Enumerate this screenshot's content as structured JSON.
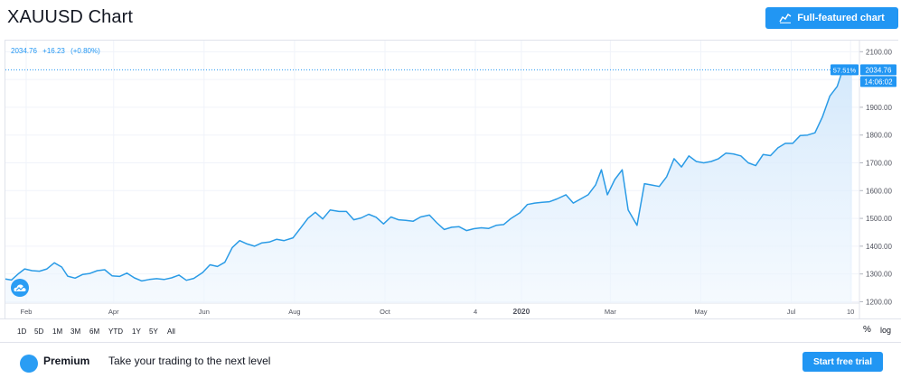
{
  "header": {
    "title": "XAUUSD Chart",
    "full_chart_label": "Full-featured chart"
  },
  "legend": {
    "last": "2034.76",
    "change": "+16.23",
    "change_pct": "(+0.80%)"
  },
  "price_badges": {
    "pct": "57.51%",
    "price": "2034.76",
    "time": "14:06:02"
  },
  "range_buttons": [
    "1D",
    "5D",
    "1M",
    "3M",
    "6M",
    "YTD",
    "1Y",
    "5Y",
    "All"
  ],
  "range_right": {
    "percent": "%",
    "log": "log"
  },
  "footer": {
    "premium_label": "Premium",
    "promo_text": "Take your trading to the next level",
    "trial_label": "Start free trial"
  },
  "colors": {
    "accent": "#2196f3",
    "line": "#2a9be6",
    "area": "#e3f1fc",
    "grid": "#f0f3fa",
    "last_price_line": "#2196f3"
  },
  "icons": {
    "full_chart": "chart-icon",
    "logo": "tradingview-cloud-icon",
    "premium": "premium-icon"
  },
  "chart_data": {
    "type": "area",
    "title": "XAUUSD",
    "xlabel": "",
    "ylabel": "",
    "ylim": [
      1195,
      2140
    ],
    "yticks": [
      1200,
      1300,
      1400,
      1500,
      1600,
      1700,
      1800,
      1900,
      2000,
      2100
    ],
    "ytick_labels": [
      "1200.00",
      "1300.00",
      "1400.00",
      "1500.00",
      "1600.00",
      "1700.00",
      "1800.00",
      "1900.00",
      "2000.00",
      "2100.00"
    ],
    "xrange": [
      "2019-01-18",
      "2020-08-16"
    ],
    "xticks": [
      {
        "date": "2019-02-01",
        "label": "Feb"
      },
      {
        "date": "2019-04-01",
        "label": "Apr"
      },
      {
        "date": "2019-06-01",
        "label": "Jun"
      },
      {
        "date": "2019-08-01",
        "label": "Aug"
      },
      {
        "date": "2019-10-01",
        "label": "Oct"
      },
      {
        "date": "2019-12-01",
        "label": "4"
      },
      {
        "date": "2020-01-01",
        "label": "2020"
      },
      {
        "date": "2020-03-01",
        "label": "Mar"
      },
      {
        "date": "2020-05-01",
        "label": "May"
      },
      {
        "date": "2020-07-01",
        "label": "Jul"
      },
      {
        "date": "2020-08-10",
        "label": "10"
      }
    ],
    "last_value": 2034.76,
    "series": [
      {
        "points": [
          [
            "2019-01-18",
            1282
          ],
          [
            "2019-01-22",
            1278
          ],
          [
            "2019-01-27",
            1302
          ],
          [
            "2019-01-31",
            1318
          ],
          [
            "2019-02-05",
            1312
          ],
          [
            "2019-02-10",
            1310
          ],
          [
            "2019-02-15",
            1318
          ],
          [
            "2019-02-20",
            1340
          ],
          [
            "2019-02-25",
            1325
          ],
          [
            "2019-03-01",
            1292
          ],
          [
            "2019-03-06",
            1285
          ],
          [
            "2019-03-11",
            1298
          ],
          [
            "2019-03-16",
            1302
          ],
          [
            "2019-03-21",
            1312
          ],
          [
            "2019-03-26",
            1315
          ],
          [
            "2019-03-31",
            1293
          ],
          [
            "2019-04-05",
            1291
          ],
          [
            "2019-04-10",
            1303
          ],
          [
            "2019-04-15",
            1286
          ],
          [
            "2019-04-20",
            1275
          ],
          [
            "2019-04-25",
            1280
          ],
          [
            "2019-04-30",
            1283
          ],
          [
            "2019-05-05",
            1280
          ],
          [
            "2019-05-10",
            1286
          ],
          [
            "2019-05-15",
            1296
          ],
          [
            "2019-05-20",
            1277
          ],
          [
            "2019-05-25",
            1284
          ],
          [
            "2019-05-31",
            1305
          ],
          [
            "2019-06-05",
            1333
          ],
          [
            "2019-06-10",
            1327
          ],
          [
            "2019-06-15",
            1342
          ],
          [
            "2019-06-20",
            1395
          ],
          [
            "2019-06-25",
            1420
          ],
          [
            "2019-06-30",
            1408
          ],
          [
            "2019-07-05",
            1400
          ],
          [
            "2019-07-10",
            1412
          ],
          [
            "2019-07-15",
            1415
          ],
          [
            "2019-07-20",
            1425
          ],
          [
            "2019-07-25",
            1420
          ],
          [
            "2019-07-31",
            1430
          ],
          [
            "2019-08-05",
            1465
          ],
          [
            "2019-08-10",
            1500
          ],
          [
            "2019-08-15",
            1522
          ],
          [
            "2019-08-20",
            1498
          ],
          [
            "2019-08-25",
            1530
          ],
          [
            "2019-08-31",
            1525
          ],
          [
            "2019-09-05",
            1525
          ],
          [
            "2019-09-10",
            1495
          ],
          [
            "2019-09-15",
            1502
          ],
          [
            "2019-09-20",
            1515
          ],
          [
            "2019-09-25",
            1504
          ],
          [
            "2019-09-30",
            1480
          ],
          [
            "2019-10-05",
            1505
          ],
          [
            "2019-10-10",
            1495
          ],
          [
            "2019-10-15",
            1493
          ],
          [
            "2019-10-20",
            1490
          ],
          [
            "2019-10-25",
            1505
          ],
          [
            "2019-10-31",
            1512
          ],
          [
            "2019-11-05",
            1484
          ],
          [
            "2019-11-10",
            1460
          ],
          [
            "2019-11-15",
            1468
          ],
          [
            "2019-11-20",
            1470
          ],
          [
            "2019-11-25",
            1456
          ],
          [
            "2019-11-30",
            1463
          ],
          [
            "2019-12-05",
            1466
          ],
          [
            "2019-12-10",
            1464
          ],
          [
            "2019-12-15",
            1475
          ],
          [
            "2019-12-20",
            1478
          ],
          [
            "2019-12-25",
            1500
          ],
          [
            "2019-12-31",
            1520
          ],
          [
            "2020-01-05",
            1550
          ],
          [
            "2020-01-10",
            1555
          ],
          [
            "2020-01-15",
            1558
          ],
          [
            "2020-01-20",
            1560
          ],
          [
            "2020-01-25",
            1570
          ],
          [
            "2020-01-31",
            1585
          ],
          [
            "2020-02-05",
            1555
          ],
          [
            "2020-02-10",
            1570
          ],
          [
            "2020-02-15",
            1585
          ],
          [
            "2020-02-20",
            1620
          ],
          [
            "2020-02-24",
            1675
          ],
          [
            "2020-02-28",
            1585
          ],
          [
            "2020-03-04",
            1640
          ],
          [
            "2020-03-09",
            1675
          ],
          [
            "2020-03-13",
            1530
          ],
          [
            "2020-03-19",
            1475
          ],
          [
            "2020-03-24",
            1625
          ],
          [
            "2020-03-29",
            1620
          ],
          [
            "2020-04-03",
            1615
          ],
          [
            "2020-04-08",
            1650
          ],
          [
            "2020-04-13",
            1715
          ],
          [
            "2020-04-18",
            1685
          ],
          [
            "2020-04-23",
            1725
          ],
          [
            "2020-04-28",
            1705
          ],
          [
            "2020-05-03",
            1700
          ],
          [
            "2020-05-08",
            1705
          ],
          [
            "2020-05-13",
            1715
          ],
          [
            "2020-05-18",
            1735
          ],
          [
            "2020-05-23",
            1732
          ],
          [
            "2020-05-28",
            1725
          ],
          [
            "2020-06-02",
            1700
          ],
          [
            "2020-06-07",
            1690
          ],
          [
            "2020-06-12",
            1730
          ],
          [
            "2020-06-17",
            1726
          ],
          [
            "2020-06-22",
            1754
          ],
          [
            "2020-06-27",
            1770
          ],
          [
            "2020-07-02",
            1770
          ],
          [
            "2020-07-07",
            1798
          ],
          [
            "2020-07-12",
            1800
          ],
          [
            "2020-07-17",
            1808
          ],
          [
            "2020-07-22",
            1865
          ],
          [
            "2020-07-27",
            1940
          ],
          [
            "2020-08-01",
            1975
          ],
          [
            "2020-08-05",
            2040
          ],
          [
            "2020-08-07",
            2035
          ],
          [
            "2020-08-10",
            2018
          ],
          [
            "2020-08-11",
            2034.76
          ]
        ]
      }
    ]
  }
}
